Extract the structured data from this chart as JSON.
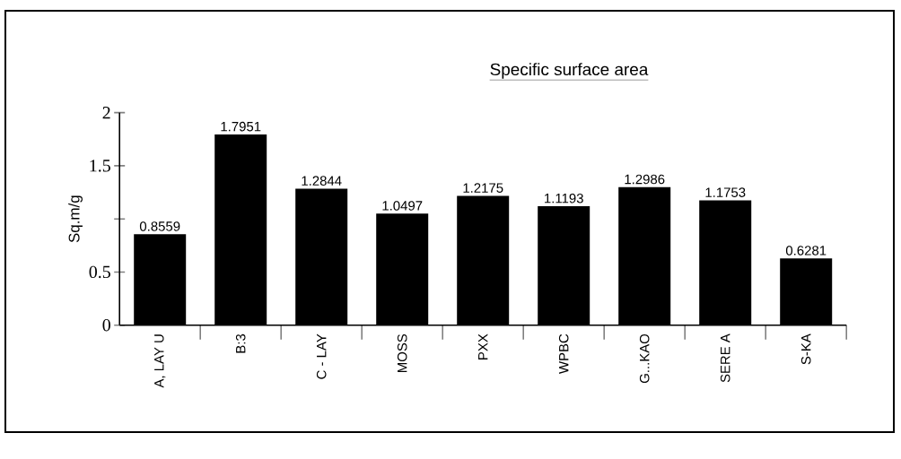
{
  "chart_data": {
    "type": "bar",
    "title": "Specific surface area",
    "ylabel": "Sq.m/g",
    "categories": [
      "A, LAY U",
      "B:3",
      "C - LAY",
      "MOSS",
      "PXX",
      "WPBC",
      "G...KAO",
      "SERE A",
      "S-KA"
    ],
    "values": [
      0.8559,
      1.7951,
      1.2844,
      1.0497,
      1.2175,
      1.1193,
      1.2986,
      1.1753,
      0.6281
    ],
    "color": "#000000",
    "ylim": [
      0,
      2
    ],
    "yticks": [
      0,
      0.5,
      {
        "value": 1,
        "label": null
      },
      1.5,
      2
    ],
    "data_labels": true,
    "grid": false
  }
}
